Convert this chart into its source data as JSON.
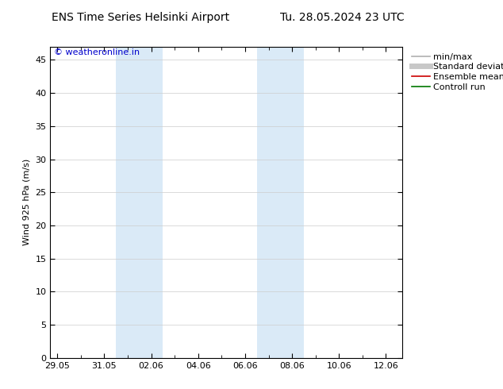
{
  "title_left": "ENS Time Series Helsinki Airport",
  "title_right": "Tu. 28.05.2024 23 UTC",
  "ylabel": "Wind 925 hPa (m/s)",
  "watermark": "© weatheronline.in",
  "watermark_color": "#0000cc",
  "ylim": [
    0,
    47
  ],
  "yticks": [
    0,
    5,
    10,
    15,
    20,
    25,
    30,
    35,
    40,
    45
  ],
  "xtick_positions": [
    0,
    2,
    4,
    6,
    8,
    10,
    12,
    14
  ],
  "xtick_labels": [
    "29.05",
    "31.05",
    "02.06",
    "04.06",
    "06.06",
    "08.06",
    "10.06",
    "12.06"
  ],
  "xlim": [
    -0.3,
    14.7
  ],
  "background_color": "#ffffff",
  "plot_bg_color": "#ffffff",
  "shaded_bands": [
    {
      "x_start": 2.5,
      "x_end": 4.5,
      "color": "#daeaf7"
    },
    {
      "x_start": 8.5,
      "x_end": 10.5,
      "color": "#daeaf7"
    }
  ],
  "legend_entries": [
    {
      "label": "min/max",
      "color": "#b0b0b0",
      "lw": 1.2,
      "style": "-"
    },
    {
      "label": "Standard deviation",
      "color": "#c8c8c8",
      "lw": 5,
      "style": "-"
    },
    {
      "label": "Ensemble mean run",
      "color": "#cc0000",
      "lw": 1.2,
      "style": "-"
    },
    {
      "label": "Controll run",
      "color": "#007700",
      "lw": 1.2,
      "style": "-"
    }
  ],
  "grid_color": "#cccccc",
  "tick_color": "#000000",
  "font_size": 8,
  "title_font_size": 10
}
